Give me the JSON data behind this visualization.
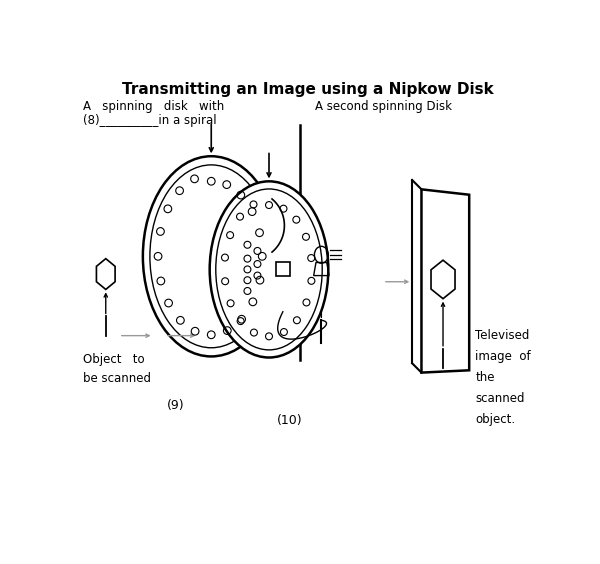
{
  "title": "Transmitting an Image using a Nipkow Disk",
  "title_fontsize": 11,
  "bg_color": "#ffffff",
  "line_color": "#000000",
  "gray_color": "#999999",
  "label_top_left": "A   spinning   disk   with",
  "label_top_right": "A second spinning Disk",
  "label_holes": "(8)__________in a spiral",
  "label_9": "(9)",
  "label_10": "(10)",
  "label_tv": "Televised\nimage  of\nthe\nscanned\nobject."
}
